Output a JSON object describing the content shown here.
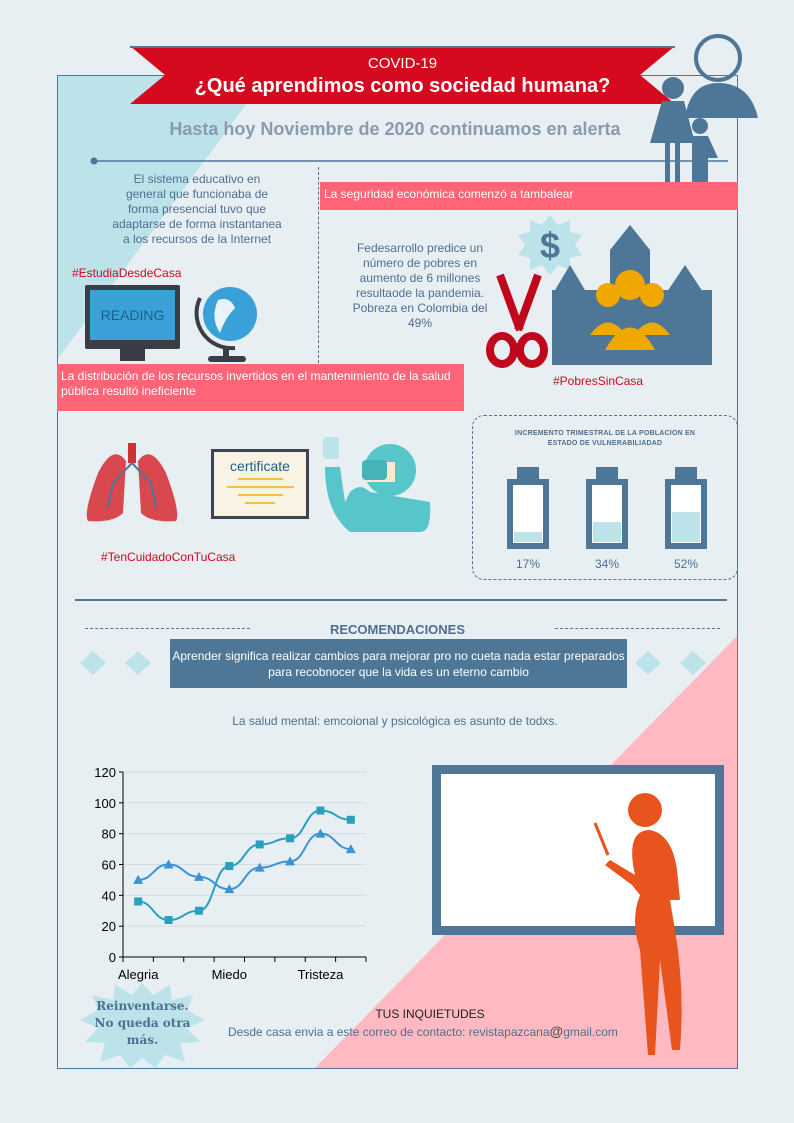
{
  "header": {
    "kicker": "COVID-19",
    "title": "¿Qué aprendimos como sociedad humana?",
    "subtitle": "Hasta hoy Noviembre de 2020 continuamos en alerta"
  },
  "education": {
    "text": "El sistema educativo en general que funcionaba de forma  presencial tuvo que adaptarse de forma instantanea a los recursos de la Internet",
    "hashtag": "#EstudiaDesdeCasa",
    "monitor_label": "READING"
  },
  "economy": {
    "banner": "La seguridad económica comenzó a tambalear",
    "text": "Fedesarrollo predice un número de pobres en aumento de 6 millones resultaode la pandemia. Pobreza en Colombia del 49%",
    "hashtag": "#PobresSinCasa"
  },
  "health": {
    "banner": "La distribución de los recursos invertidos en el mantenimiento de la salud pública resultó ineficiente",
    "certificate_label": "certificate",
    "hashtag": "#TenCuidadoConTuCasa"
  },
  "vulnerability": {
    "title": "INCREMENTO TRIMESTRAL DE LA POBLACION EN ESTADO DE VULNERABILIADAD",
    "batteries": [
      {
        "label": "17%",
        "value": 17
      },
      {
        "label": "34%",
        "value": 34
      },
      {
        "label": "52%",
        "value": 52
      }
    ]
  },
  "recommendations": {
    "title": "RECOMENDACIONES",
    "quote": "Aprender significa realizar cambios para mejorar pro no cueta nada estar preparados para recobnocer que la vida es un eterno cambio",
    "mental_health": "La salud mental: emcoional y psicológica es asunto de todxs."
  },
  "burst": {
    "text": "Reinventarse. No queda otra más."
  },
  "contact": {
    "title": "TUS INQUIETUDES",
    "text": "Desde casa envia a este correo de contacto: revistapazcana",
    "at": "@",
    "domain": "gmail.com"
  },
  "colors": {
    "red": "#d50a1e",
    "pink": "#ff6577",
    "steel": "#4e7797",
    "lightblue": "#bde3ea",
    "orange": "#e8541e"
  },
  "chart_data": {
    "type": "line",
    "categories": [
      "Alegria",
      "",
      "",
      "Miedo",
      "",
      "",
      "Tristeza",
      ""
    ],
    "ylim": [
      0,
      120
    ],
    "yticks": [
      0,
      20,
      40,
      60,
      80,
      100,
      120
    ],
    "grid": true,
    "series": [
      {
        "marker": "square",
        "color": "#2a9fbf",
        "values": [
          36,
          24,
          30,
          59,
          73,
          77,
          95,
          89
        ]
      },
      {
        "marker": "triangle",
        "color": "#3a93d4",
        "values": [
          50,
          60,
          52,
          44,
          58,
          62,
          80,
          70
        ]
      }
    ]
  }
}
